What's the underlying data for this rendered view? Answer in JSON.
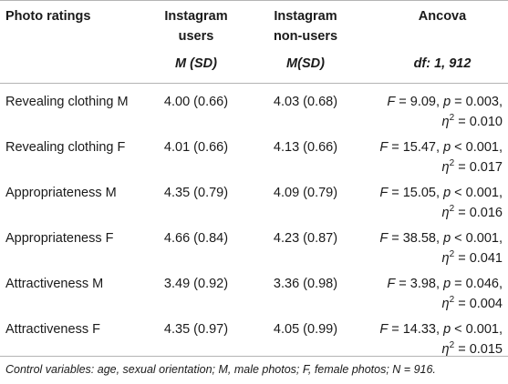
{
  "header": {
    "col1": "Photo ratings",
    "col2_line1": "Instagram",
    "col2_line2": "users",
    "col2_sub": "M (SD)",
    "col3_line1": "Instagram",
    "col3_line2": "non-users",
    "col3_sub": "M(SD)",
    "col4_line1": "Ancova",
    "col4_sub": "df: 1, 912"
  },
  "rows": [
    {
      "label": "Revealing clothing M",
      "users": "4.00 (0.66)",
      "nonusers": "4.03 (0.68)",
      "F": "9.09",
      "p_op": "=",
      "p": "0.003",
      "eta": "0.010"
    },
    {
      "label": "Revealing clothing F",
      "users": "4.01 (0.66)",
      "nonusers": "4.13 (0.66)",
      "F": "15.47",
      "p_op": "<",
      "p": "0.001",
      "eta": "0.017"
    },
    {
      "label": "Appropriateness M",
      "users": "4.35 (0.79)",
      "nonusers": "4.09 (0.79)",
      "F": "15.05",
      "p_op": "<",
      "p": "0.001",
      "eta": "0.016"
    },
    {
      "label": "Appropriateness F",
      "users": "4.66 (0.84)",
      "nonusers": "4.23 (0.87)",
      "F": "38.58",
      "p_op": "<",
      "p": "0.001",
      "eta": "0.041"
    },
    {
      "label": "Attractiveness M",
      "users": "3.49 (0.92)",
      "nonusers": "3.36 (0.98)",
      "F": "3.98",
      "p_op": "=",
      "p": "0.046",
      "eta": "0.004"
    },
    {
      "label": "Attractiveness F",
      "users": "4.35 (0.97)",
      "nonusers": "4.05 (0.99)",
      "F": "14.33",
      "p_op": "<",
      "p": "0.001",
      "eta": "0.015"
    }
  ],
  "stat_symbols": {
    "F": "F",
    "p": "p",
    "eta": "η",
    "sq": "2",
    "eq": "=",
    "comma": ","
  },
  "footnote": "Control variables: age, sexual orientation; M, male photos; F, female photos; N = 916."
}
